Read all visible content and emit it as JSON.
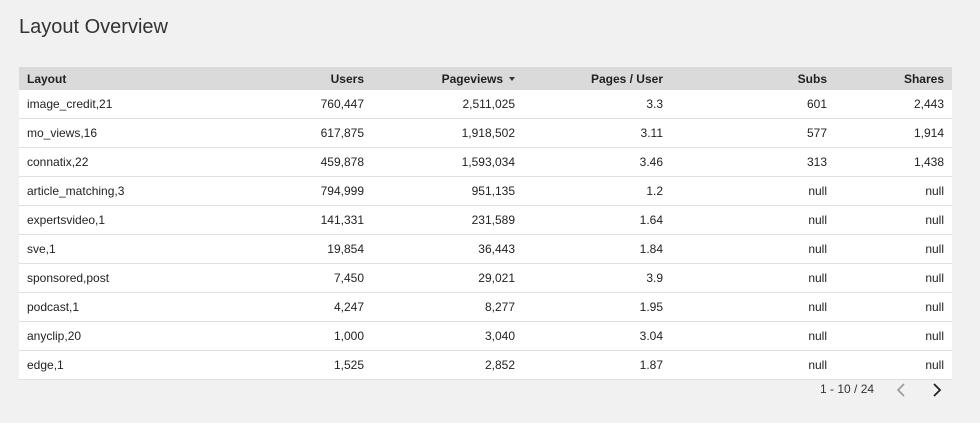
{
  "header": {
    "title": "Layout Overview"
  },
  "table": {
    "columns": [
      "Layout",
      "Users",
      "Pageviews",
      "Pages / User",
      "Subs",
      "Shares"
    ],
    "rows": [
      [
        "image_credit,21",
        "760,447",
        "2,511,025",
        "3.3",
        "601",
        "2,443"
      ],
      [
        "mo_views,16",
        "617,875",
        "1,918,502",
        "3.11",
        "577",
        "1,914"
      ],
      [
        "connatix,22",
        "459,878",
        "1,593,034",
        "3.46",
        "313",
        "1,438"
      ],
      [
        "article_matching,3",
        "794,999",
        "951,135",
        "1.2",
        "null",
        "null"
      ],
      [
        "expertsvideo,1",
        "141,331",
        "231,589",
        "1.64",
        "null",
        "null"
      ],
      [
        "sve,1",
        "19,854",
        "36,443",
        "1.84",
        "null",
        "null"
      ],
      [
        "sponsored,post",
        "7,450",
        "29,021",
        "3.9",
        "null",
        "null"
      ],
      [
        "podcast,1",
        "4,247",
        "8,277",
        "1.95",
        "null",
        "null"
      ],
      [
        "anyclip,20",
        "1,000",
        "3,040",
        "3.04",
        "null",
        "null"
      ],
      [
        "edge,1",
        "1,525",
        "2,852",
        "1.87",
        "null",
        "null"
      ]
    ]
  },
  "pagination": {
    "range": "1 - 10 / 24"
  }
}
